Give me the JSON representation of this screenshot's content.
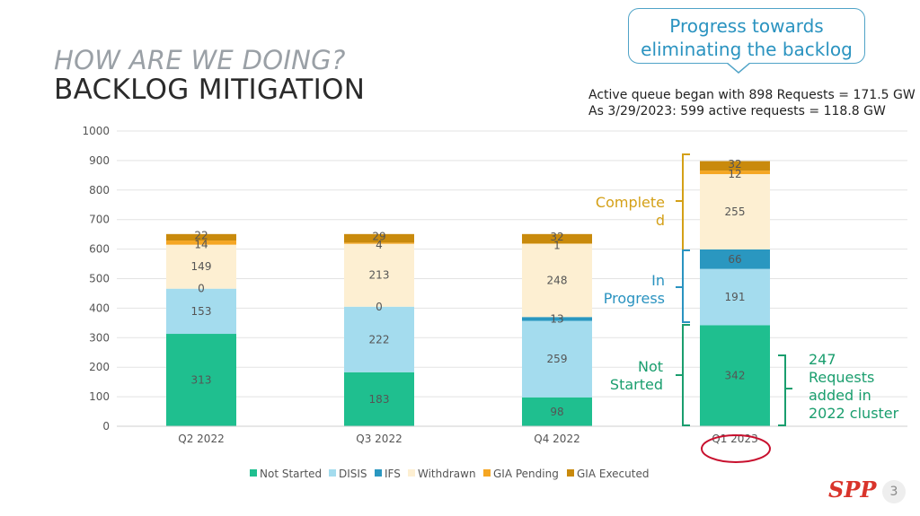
{
  "header": {
    "subtitle": "HOW ARE WE DOING?",
    "title": "BACKLOG MITIGATION"
  },
  "callout": {
    "line1": "Progress towards",
    "line2": "eliminating the backlog"
  },
  "notes": {
    "line1": "Active queue began with 898 Requests = 171.5 GW",
    "line2": "As 3/29/2023: 599 active requests = 118.8 GW"
  },
  "brackets": {
    "completed_1": "Complete",
    "completed_2": "d",
    "in_progress_1": "In",
    "in_progress_2": "Progress",
    "not_started_1": "Not",
    "not_started_2": "Started",
    "added_1": "247",
    "added_2": "Requests",
    "added_3": "added in",
    "added_4": "2022 cluster"
  },
  "footer": {
    "page_number": "3",
    "logo_text": "SPP"
  },
  "colors": {
    "not_started": "#1fbf8f",
    "disis": "#a4dcee",
    "ifs": "#2a97c0",
    "withdrawn": "#fdefd2",
    "gia_pending": "#f5a623",
    "gia_executed": "#c98a0c",
    "bracket_completed": "#d4a017",
    "bracket_in_progress": "#2a93c0",
    "bracket_not_started": "#1a9e6e",
    "circle": "#c8102e"
  },
  "chart_data": {
    "type": "bar",
    "stacked": true,
    "categories": [
      "Q2 2022",
      "Q3 2022",
      "Q4 2022",
      "Q1 2023"
    ],
    "ylim": [
      0,
      1000
    ],
    "yticks": [
      0,
      100,
      200,
      300,
      400,
      500,
      600,
      700,
      800,
      900,
      1000
    ],
    "grid": true,
    "legend": "bottom",
    "series": [
      {
        "name": "Not Started",
        "values": [
          313,
          183,
          98,
          342
        ]
      },
      {
        "name": "DISIS",
        "values": [
          153,
          222,
          259,
          191
        ]
      },
      {
        "name": "IFS",
        "values": [
          0,
          0,
          13,
          66
        ]
      },
      {
        "name": "Withdrawn",
        "values": [
          149,
          213,
          248,
          255
        ]
      },
      {
        "name": "GIA Pending",
        "values": [
          14,
          4,
          1,
          12
        ]
      },
      {
        "name": "GIA Executed",
        "values": [
          22,
          29,
          32,
          32
        ]
      }
    ]
  }
}
